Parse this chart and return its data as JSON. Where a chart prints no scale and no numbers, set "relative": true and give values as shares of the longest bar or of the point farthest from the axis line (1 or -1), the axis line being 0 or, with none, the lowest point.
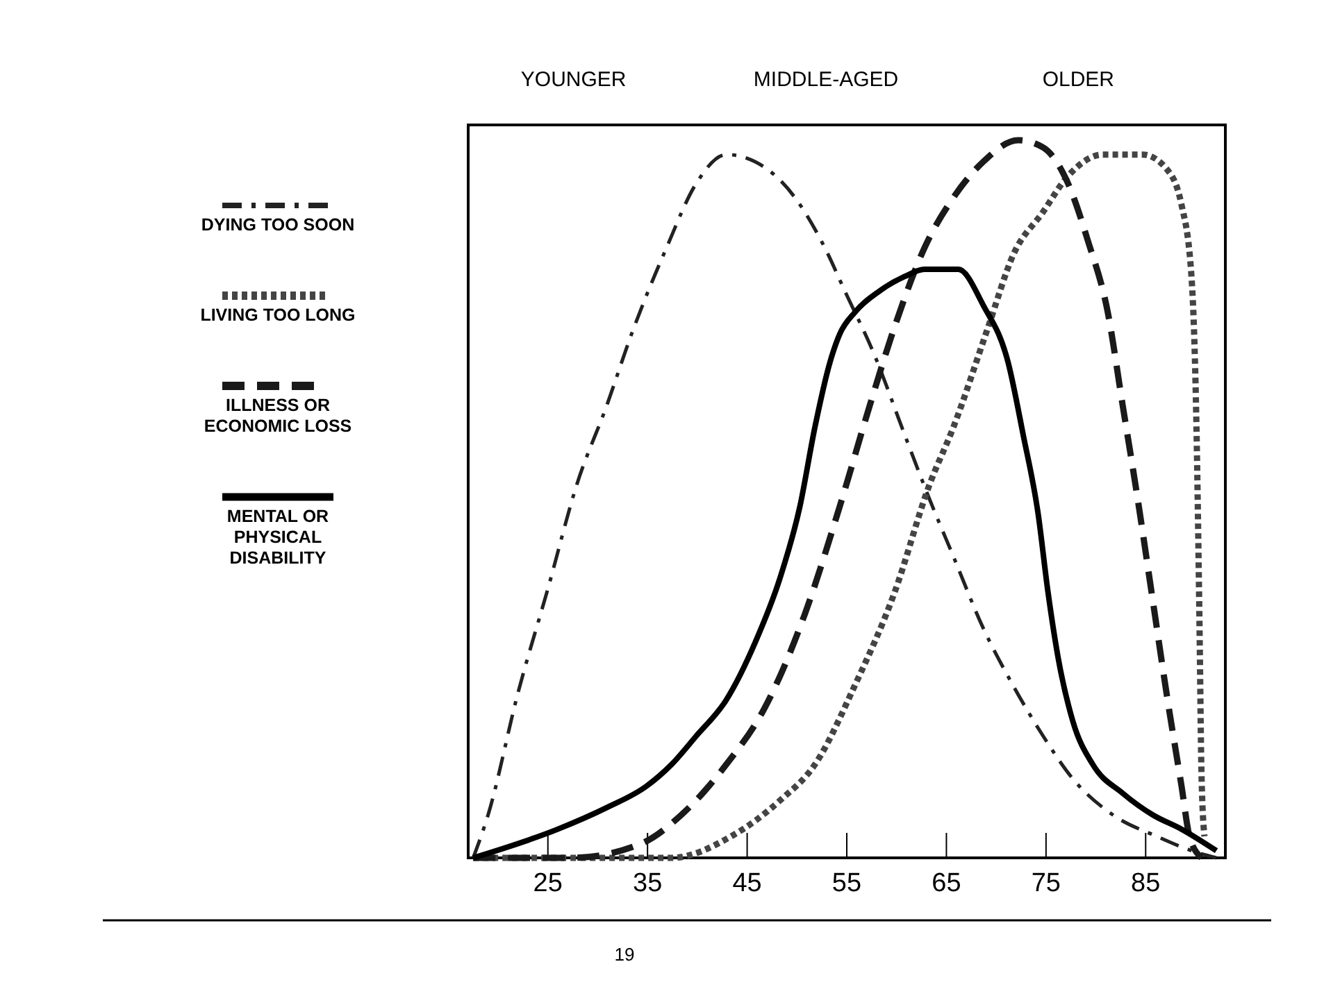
{
  "chart_data": {
    "type": "line",
    "relative": true,
    "legend": "left",
    "xlim": [
      17,
      93
    ],
    "xticks": [
      25,
      35,
      45,
      55,
      65,
      75,
      85
    ],
    "annotations": [
      "YOUNGER",
      "MIDDLE-AGED",
      "OLDER",
      "19"
    ],
    "series": [
      {
        "name": "DYING TOO SOON",
        "color": "#222222",
        "line_style": "dashdot",
        "x": [
          17.5,
          19.0,
          22.0,
          25.0,
          27.9,
          30.9,
          33.4,
          36.9,
          39.9,
          42.9,
          45.8,
          49.8,
          52.8,
          54.8,
          57.8,
          60.8,
          63.3,
          65.7,
          68.7,
          71.7,
          74.7,
          77.7,
          81.7,
          86.1,
          89.6,
          92.1
        ],
        "values": [
          0,
          0.06,
          0.23,
          0.375,
          0.52,
          0.63,
          0.73,
          0.85,
          0.94,
          0.98,
          0.97,
          0.92,
          0.85,
          0.79,
          0.7,
          0.59,
          0.5,
          0.42,
          0.32,
          0.24,
          0.17,
          0.11,
          0.06,
          0.03,
          0.01,
          0
        ]
      },
      {
        "name": "LIVING TOO LONG",
        "color": "#444444",
        "line_style": "dotted",
        "x": [
          17.5,
          25.9,
          37.4,
          43.4,
          48.3,
          51.8,
          55.8,
          59.8,
          63.3,
          65.7,
          69.2,
          71.7,
          74.7,
          77.2,
          80.7,
          84.7,
          87.1,
          88.6,
          89.6,
          90.1,
          90.4,
          90.6,
          90.9
        ],
        "values": [
          0,
          0,
          0,
          0.03,
          0.08,
          0.13,
          0.24,
          0.37,
          0.52,
          0.6,
          0.74,
          0.84,
          0.9,
          0.95,
          0.98,
          0.98,
          0.96,
          0.91,
          0.81,
          0.6,
          0.33,
          0.12,
          0.03
        ]
      },
      {
        "name": "ILLNESS OR ECONOMIC LOSS",
        "color": "#1a1a1a",
        "line_style": "dashed",
        "x": [
          17.5,
          27.4,
          34.4,
          38.4,
          42.9,
          46.8,
          50.8,
          54.3,
          57.3,
          59.8,
          62.8,
          65.7,
          68.7,
          72.2,
          74.7,
          77.2,
          79.2,
          81.2,
          82.7,
          84.2,
          85.7,
          87.2,
          88.6,
          89.4,
          90.6
        ],
        "values": [
          0,
          0,
          0.02,
          0.06,
          0.13,
          0.21,
          0.34,
          0.49,
          0.63,
          0.74,
          0.85,
          0.92,
          0.97,
          1,
          0.99,
          0.94,
          0.86,
          0.76,
          0.63,
          0.5,
          0.36,
          0.22,
          0.1,
          0.03,
          0
        ]
      },
      {
        "name": "MENTAL OR PHYSICAL DISABILITY",
        "color": "#000000",
        "line_style": "solid",
        "x": [
          17.5,
          26.0,
          30.9,
          34.9,
          37.4,
          39.9,
          42.9,
          45.8,
          48.3,
          50.3,
          51.8,
          53.3,
          54.3,
          55.8,
          58.3,
          60.8,
          62.8,
          65.2,
          66.2,
          68.7,
          71.2,
          72.7,
          74.2,
          75.2,
          76.2,
          77.7,
          79.7,
          82.7,
          85.7,
          88.6,
          92.1
        ],
        "values": [
          0,
          0.04,
          0.07,
          0.1,
          0.13,
          0.17,
          0.22,
          0.3,
          0.39,
          0.49,
          0.6,
          0.69,
          0.73,
          0.76,
          0.79,
          0.81,
          0.82,
          0.82,
          0.82,
          0.77,
          0.69,
          0.59,
          0.48,
          0.37,
          0.28,
          0.19,
          0.13,
          0.09,
          0.06,
          0.04,
          0.01
        ]
      }
    ]
  }
}
